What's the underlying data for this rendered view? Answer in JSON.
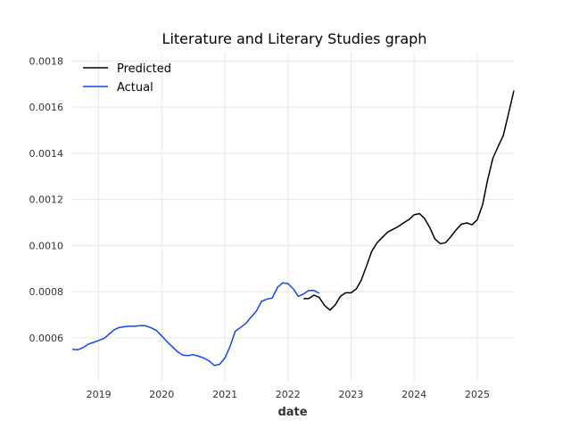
{
  "chart_data": {
    "type": "line",
    "title": "Literature and Literary Studies graph",
    "xlabel": "date",
    "ylabel": "",
    "x_ticks": [
      "2019",
      "2020",
      "2021",
      "2022",
      "2023",
      "2024",
      "2025"
    ],
    "y_ticks": [
      "0.0006",
      "0.0008",
      "0.0010",
      "0.0012",
      "0.0014",
      "0.0016",
      "0.0018"
    ],
    "xlim": [
      "2018-08-01",
      "2025-08-01"
    ],
    "ylim": [
      0.00041,
      0.00184
    ],
    "grid": true,
    "legend_position": "top-left",
    "series": [
      {
        "name": "Predicted",
        "color": "#000000",
        "x": [
          "2022-04-01",
          "2022-05-01",
          "2022-06-01",
          "2022-07-01",
          "2022-08-01",
          "2022-09-01",
          "2022-10-01",
          "2022-11-01",
          "2022-12-01",
          "2023-01-01",
          "2023-02-01",
          "2023-03-01",
          "2023-04-01",
          "2023-05-01",
          "2023-06-01",
          "2023-07-01",
          "2023-08-01",
          "2023-09-01",
          "2023-10-01",
          "2023-11-01",
          "2023-12-01",
          "2024-01-01",
          "2024-02-01",
          "2024-03-01",
          "2024-04-01",
          "2024-05-01",
          "2024-06-01",
          "2024-07-01",
          "2024-08-01",
          "2024-09-01",
          "2024-10-01",
          "2024-11-01",
          "2024-12-01",
          "2025-01-01",
          "2025-02-01",
          "2025-03-01",
          "2025-04-01",
          "2025-05-01",
          "2025-06-01",
          "2025-07-01",
          "2025-08-01"
        ],
        "values": [
          0.00077,
          0.00077,
          0.000785,
          0.000775,
          0.00074,
          0.00072,
          0.000742,
          0.00078,
          0.000795,
          0.000795,
          0.000812,
          0.00085,
          0.000912,
          0.000975,
          0.001012,
          0.001035,
          0.001058,
          0.00107,
          0.001082,
          0.001098,
          0.001112,
          0.001133,
          0.001138,
          0.001118,
          0.001078,
          0.001028,
          0.001008,
          0.001012,
          0.001038,
          0.001068,
          0.001092,
          0.001098,
          0.00109,
          0.001112,
          0.001178,
          0.001282,
          0.001378,
          0.001428,
          0.001478,
          0.001572,
          0.001672
        ]
      },
      {
        "name": "Actual",
        "color": "#1446f0",
        "x": [
          "2018-08-01",
          "2018-09-01",
          "2018-10-01",
          "2018-11-01",
          "2018-12-01",
          "2019-01-01",
          "2019-02-01",
          "2019-03-01",
          "2019-04-01",
          "2019-05-01",
          "2019-06-01",
          "2019-07-01",
          "2019-08-01",
          "2019-09-01",
          "2019-10-01",
          "2019-11-01",
          "2019-12-01",
          "2020-01-01",
          "2020-02-01",
          "2020-03-01",
          "2020-04-01",
          "2020-05-01",
          "2020-06-01",
          "2020-07-01",
          "2020-08-01",
          "2020-09-01",
          "2020-10-01",
          "2020-11-01",
          "2020-12-01",
          "2021-01-01",
          "2021-02-01",
          "2021-03-01",
          "2021-04-01",
          "2021-05-01",
          "2021-06-01",
          "2021-07-01",
          "2021-08-01",
          "2021-09-01",
          "2021-10-01",
          "2021-11-01",
          "2021-12-01",
          "2022-01-01",
          "2022-02-01",
          "2022-03-01",
          "2022-04-01",
          "2022-05-01",
          "2022-06-01",
          "2022-07-01"
        ],
        "values": [
          0.00055,
          0.000548,
          0.000557,
          0.000572,
          0.00058,
          0.000588,
          0.000598,
          0.000615,
          0.000635,
          0.000645,
          0.000648,
          0.00065,
          0.00065,
          0.000653,
          0.000652,
          0.000643,
          0.000632,
          0.000608,
          0.000583,
          0.000562,
          0.00054,
          0.000525,
          0.000523,
          0.000527,
          0.00052,
          0.000512,
          0.0005,
          0.00048,
          0.000485,
          0.000512,
          0.000565,
          0.000628,
          0.000645,
          0.000662,
          0.00069,
          0.000715,
          0.000758,
          0.000768,
          0.000772,
          0.000818,
          0.000838,
          0.000835,
          0.000812,
          0.00078,
          0.00079,
          0.000805,
          0.000805,
          0.000793
        ]
      }
    ]
  }
}
